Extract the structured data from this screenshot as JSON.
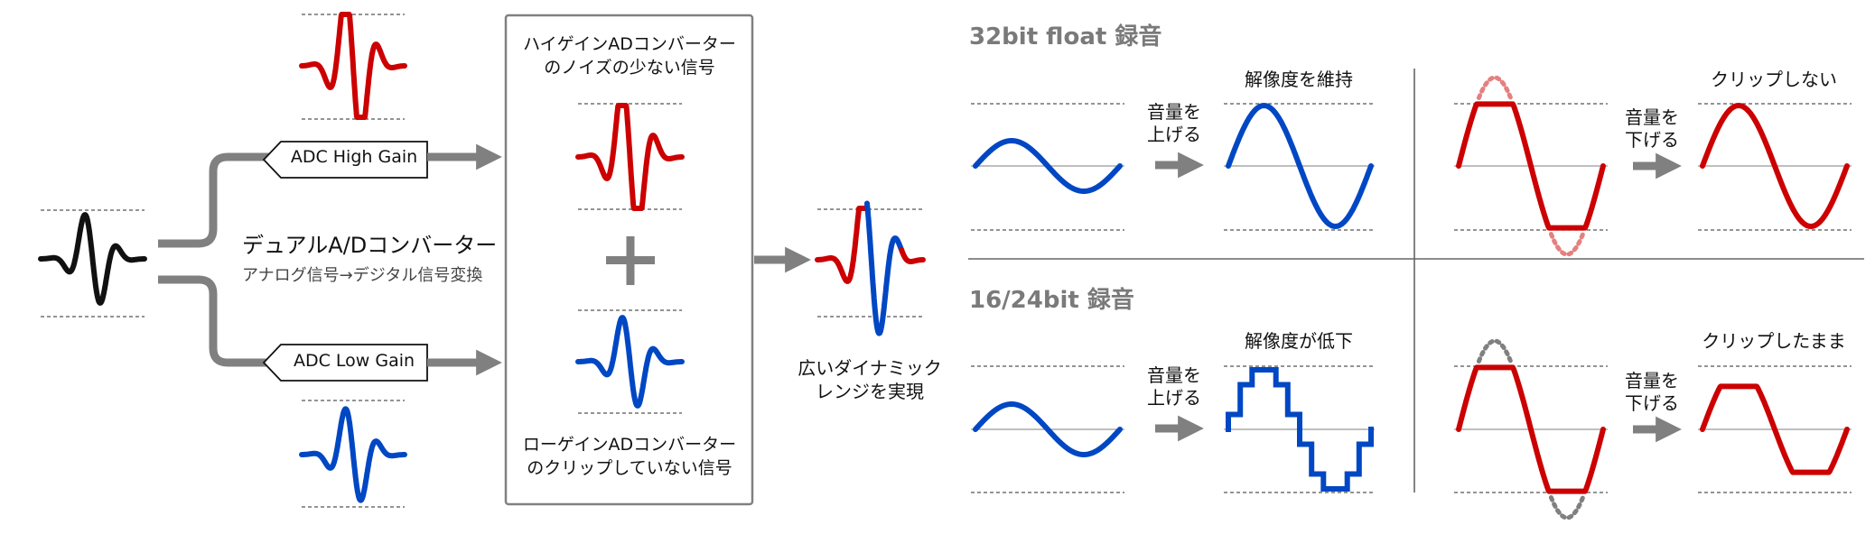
{
  "adc": {
    "high_gain_label": "ADC High Gain",
    "low_gain_label": "ADC Low Gain",
    "dual_title": "デュアルA/Dコンバーター",
    "dual_subtitle": "アナログ信号→デジタル信号変換"
  },
  "combine": {
    "high_caption": [
      "ハイゲインADコンバーター",
      "のノイズの少ない信号"
    ],
    "low_caption": [
      "ローゲインADコンバーター",
      "のクリップしていない信号"
    ],
    "result_caption": [
      "広いダイナミック",
      "レンジを実現"
    ]
  },
  "float32": {
    "title": "32bit float 録音",
    "volume_up": [
      "音量を",
      "上げる"
    ],
    "resolution_label": "解像度を維持",
    "volume_down": [
      "音量を",
      "下げる"
    ],
    "clip_label": "クリップしない"
  },
  "int16_24": {
    "title": "16/24bit 録音",
    "volume_up": [
      "音量を",
      "上げる"
    ],
    "resolution_label": "解像度が低下",
    "volume_down": [
      "音量を",
      "下げる"
    ],
    "clip_label": "クリップしたまま"
  },
  "colors": {
    "black_wave": "#111111",
    "red_wave": "#cc0000",
    "blue_wave": "#0047c4",
    "arrow_gray": "#808080",
    "faded_red": "#e58080",
    "faded_gray": "#808080"
  }
}
